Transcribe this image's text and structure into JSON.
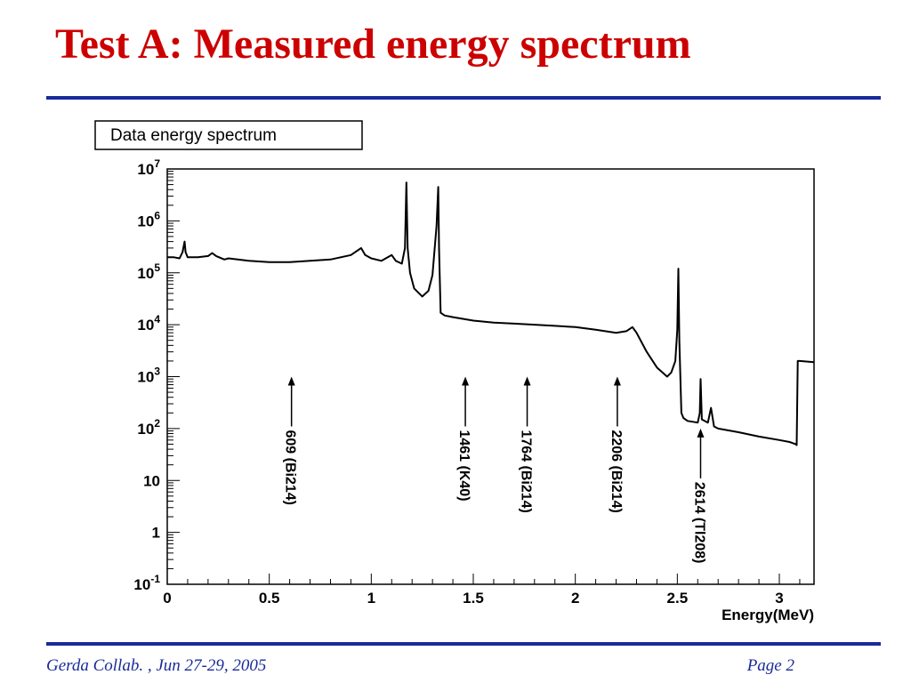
{
  "slide": {
    "title": "Test A: Measured energy spectrum",
    "footer_left": "Gerda Collab. , Jun 27-29, 2005",
    "footer_right": "Page 2",
    "accent_color": "#1a2b99",
    "title_color": "#cc0000"
  },
  "chart_data": {
    "type": "line",
    "title": "Data energy spectrum",
    "xlabel": "Energy(MeV)",
    "ylabel": "",
    "xlim": [
      0,
      3.17
    ],
    "ylim": [
      0.1,
      10000000
    ],
    "yscale": "log",
    "grid": false,
    "x_ticks": [
      {
        "value": 0,
        "label": "0"
      },
      {
        "value": 0.5,
        "label": "0.5"
      },
      {
        "value": 1,
        "label": "1"
      },
      {
        "value": 1.5,
        "label": "1.5"
      },
      {
        "value": 2,
        "label": "2"
      },
      {
        "value": 2.5,
        "label": "2.5"
      },
      {
        "value": 3,
        "label": "3"
      }
    ],
    "y_ticks": [
      {
        "value": 10000000,
        "base": "10",
        "exp": "7"
      },
      {
        "value": 1000000,
        "base": "10",
        "exp": "6"
      },
      {
        "value": 100000,
        "base": "10",
        "exp": "5"
      },
      {
        "value": 10000,
        "base": "10",
        "exp": "4"
      },
      {
        "value": 1000,
        "base": "10",
        "exp": "3"
      },
      {
        "value": 100,
        "base": "10",
        "exp": "2"
      },
      {
        "value": 10,
        "base": "10",
        "exp": ""
      },
      {
        "value": 1,
        "base": "1",
        "exp": ""
      },
      {
        "value": 0.1,
        "base": "10",
        "exp": "-1"
      }
    ],
    "series": [
      {
        "x": [
          0,
          0.03,
          0.06,
          0.075,
          0.085,
          0.09,
          0.1,
          0.15,
          0.2,
          0.22,
          0.24,
          0.28,
          0.3,
          0.4,
          0.5,
          0.6,
          0.7,
          0.8,
          0.9,
          0.95,
          0.97,
          1.0,
          1.05,
          1.1,
          1.12,
          1.15,
          1.165,
          1.172,
          1.178,
          1.19,
          1.21,
          1.25,
          1.28,
          1.3,
          1.32,
          1.328,
          1.332,
          1.34,
          1.36,
          1.4,
          1.5,
          1.6,
          1.7,
          1.8,
          1.9,
          2.0,
          2.1,
          2.2,
          2.25,
          2.28,
          2.3,
          2.35,
          2.4,
          2.45,
          2.47,
          2.49,
          2.5,
          2.505,
          2.51,
          2.52,
          2.53,
          2.55,
          2.6,
          2.61,
          2.614,
          2.62,
          2.65,
          2.665,
          2.68,
          2.7,
          2.8,
          2.9,
          3.0,
          3.05,
          3.08,
          3.085,
          3.09,
          3.1,
          3.17
        ],
        "y": [
          200000,
          200000,
          190000,
          250000,
          400000,
          250000,
          200000,
          200000,
          210000,
          240000,
          210000,
          180000,
          190000,
          170000,
          160000,
          160000,
          170000,
          180000,
          220000,
          300000,
          220000,
          190000,
          170000,
          220000,
          170000,
          150000,
          300000,
          5500000,
          300000,
          100000,
          50000,
          35000,
          45000,
          90000,
          800000,
          4500000,
          300000,
          17000,
          15000,
          14000,
          12000,
          11000,
          10500,
          10000,
          9500,
          9000,
          8000,
          7000,
          7500,
          9000,
          7000,
          3000,
          1500,
          1000,
          1200,
          2000,
          8000,
          120000,
          5000,
          200,
          160,
          140,
          130,
          200,
          900,
          150,
          130,
          250,
          110,
          100,
          85,
          70,
          60,
          55,
          50,
          48,
          2000,
          2000,
          1900
        ]
      }
    ],
    "annotations": [
      {
        "label": "609 (Bi214)",
        "x": 0.609,
        "y": 1000
      },
      {
        "label": "1461 (K40)",
        "x": 1.461,
        "y": 1000
      },
      {
        "label": "1764 (Bi214)",
        "x": 1.764,
        "y": 1000
      },
      {
        "label": "2206 (Bi214)",
        "x": 2.206,
        "y": 1000
      },
      {
        "label": "2614 (Tl208)",
        "x": 2.614,
        "y": 100
      }
    ]
  }
}
